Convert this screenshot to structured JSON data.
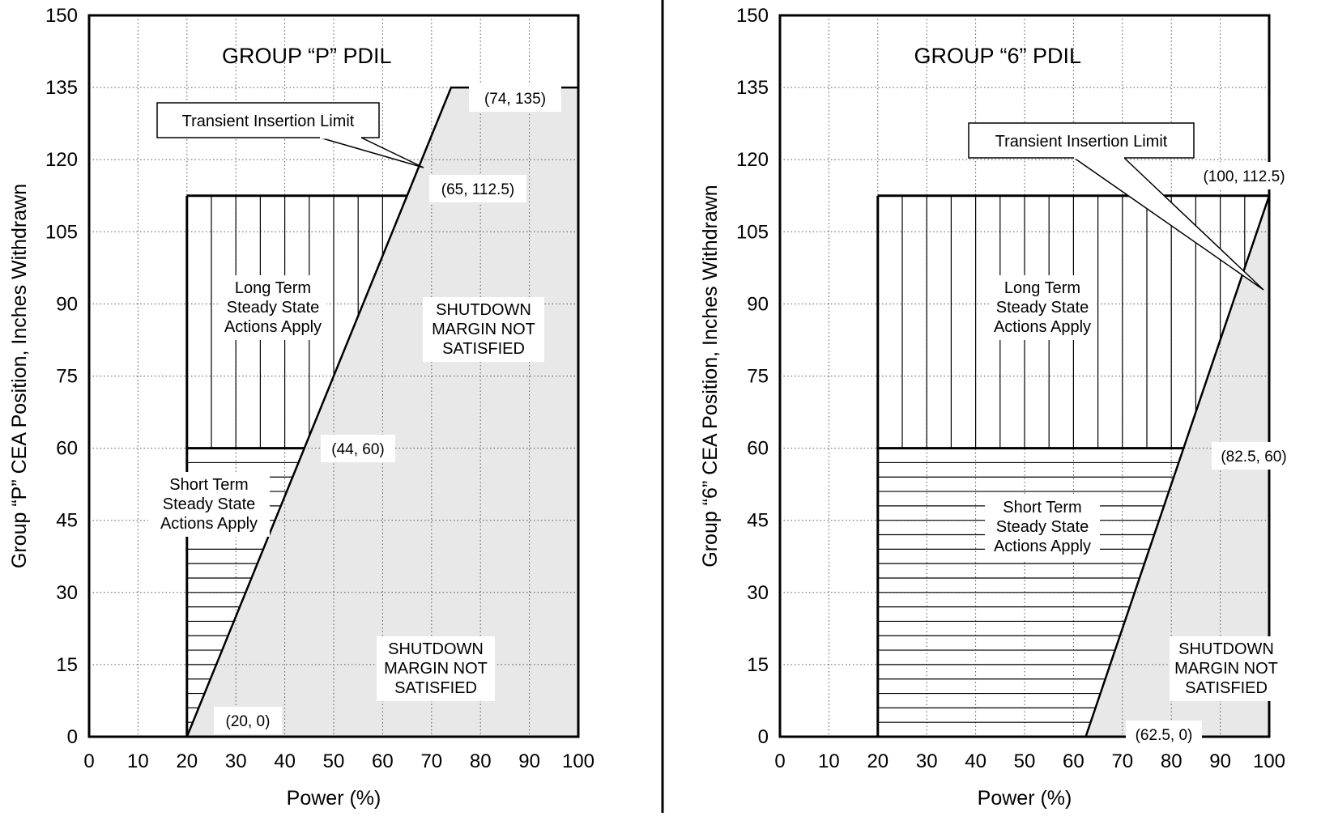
{
  "chart_data": [
    {
      "type": "area",
      "title": "GROUP “P” PDIL",
      "xlabel": "Power (%)",
      "ylabel": "Group “P” CEA Position, Inches Withdrawn",
      "xlim": [
        0,
        100
      ],
      "ylim": [
        0,
        150
      ],
      "xticks": [
        "0",
        "10",
        "20",
        "30",
        "40",
        "50",
        "60",
        "70",
        "80",
        "90",
        "100"
      ],
      "yticks": [
        "0",
        "15",
        "30",
        "45",
        "60",
        "75",
        "90",
        "105",
        "120",
        "135",
        "150"
      ],
      "grid": true,
      "series": [
        {
          "name": "Transient Insertion Limit",
          "x": [
            0,
            20,
            44,
            65,
            74,
            100
          ],
          "y": [
            0,
            0,
            60,
            112.5,
            135,
            135
          ]
        }
      ],
      "points": [
        {
          "label": "(20, 0)",
          "x": 20,
          "y": 0
        },
        {
          "label": "(44, 60)",
          "x": 44,
          "y": 60
        },
        {
          "label": "(65, 112.5)",
          "x": 65,
          "y": 112.5
        },
        {
          "label": "(74, 135)",
          "x": 74,
          "y": 135
        }
      ],
      "regions": {
        "long_term": {
          "lines": [
            "Long Term",
            "Steady State",
            "Actions Apply"
          ],
          "x": [
            20,
            65
          ],
          "y": [
            60,
            112.5
          ]
        },
        "short_term": {
          "lines": [
            "Short Term",
            "Steady State",
            "Actions Apply"
          ],
          "x": [
            20,
            44
          ],
          "y": [
            0,
            60
          ]
        },
        "shutdown_upper": [
          "SHUTDOWN",
          "MARGIN NOT",
          "SATISFIED"
        ],
        "shutdown_lower": [
          "SHUTDOWN",
          "MARGIN NOT",
          "SATISFIED"
        ]
      },
      "callout": "Transient Insertion Limit"
    },
    {
      "type": "area",
      "title": "GROUP “6” PDIL",
      "xlabel": "Power (%)",
      "ylabel": "Group “6” CEA Position, Inches Withdrawn",
      "xlim": [
        0,
        100
      ],
      "ylim": [
        0,
        150
      ],
      "xticks": [
        "0",
        "10",
        "20",
        "30",
        "40",
        "50",
        "60",
        "70",
        "80",
        "90",
        "100"
      ],
      "yticks": [
        "0",
        "15",
        "30",
        "45",
        "60",
        "75",
        "90",
        "105",
        "120",
        "135",
        "150"
      ],
      "grid": true,
      "series": [
        {
          "name": "Transient Insertion Limit",
          "x": [
            0,
            20,
            62.5,
            82.5,
            100
          ],
          "y": [
            0,
            0,
            0,
            60,
            112.5
          ]
        }
      ],
      "points": [
        {
          "label": "(62.5, 0)",
          "x": 62.5,
          "y": 0
        },
        {
          "label": "(82.5, 60)",
          "x": 82.5,
          "y": 60
        },
        {
          "label": "(100, 112.5)",
          "x": 100,
          "y": 112.5
        }
      ],
      "regions": {
        "long_term": {
          "lines": [
            "Long Term",
            "Steady State",
            "Actions Apply"
          ],
          "x": [
            20,
            100
          ],
          "y": [
            60,
            112.5
          ]
        },
        "short_term": {
          "lines": [
            "Short Term",
            "Steady State",
            "Actions Apply"
          ],
          "x": [
            20,
            82.5
          ],
          "y": [
            0,
            60
          ]
        },
        "shutdown_lower": [
          "SHUTDOWN",
          "MARGIN NOT",
          "SATISFIED"
        ]
      },
      "callout": "Transient Insertion Limit"
    }
  ],
  "colors": {
    "shaded": "#e8e8e8",
    "line": "#000000",
    "grid": "#555555"
  }
}
